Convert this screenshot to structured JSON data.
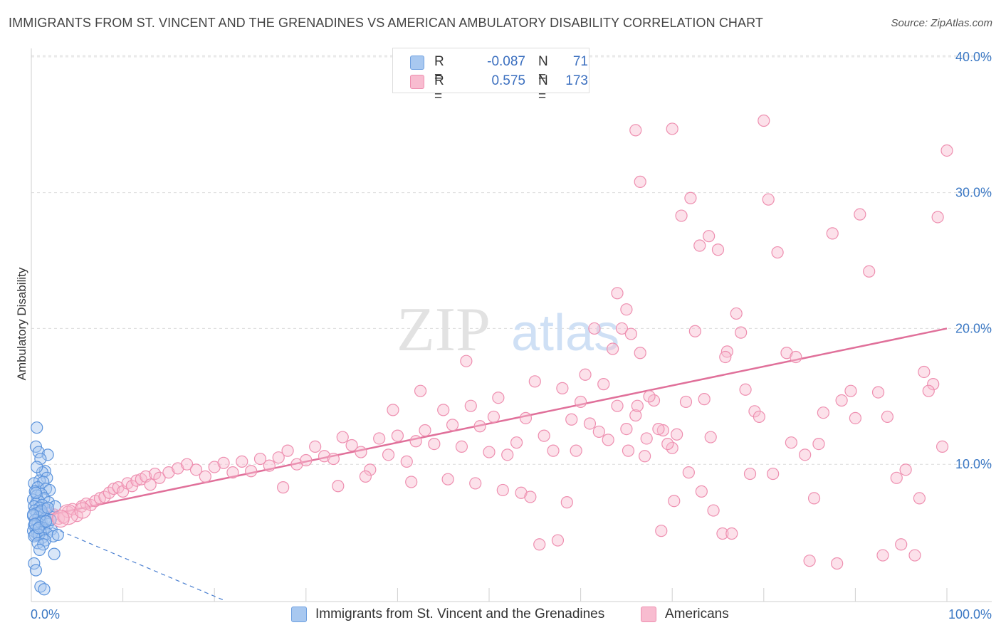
{
  "title": "IMMIGRANTS FROM ST. VINCENT AND THE GRENADINES VS AMERICAN AMBULATORY DISABILITY CORRELATION CHART",
  "source": "Source: ZipAtlas.com",
  "watermark": {
    "part1": "ZIP",
    "part2": "atlas"
  },
  "legend": {
    "rows": [
      {
        "r_label": "R =",
        "r_value": "-0.087",
        "n_label": "N =",
        "n_value": "71",
        "color": "#a8c8f0",
        "border": "#6fa0e0"
      },
      {
        "r_label": "R =",
        "r_value": "0.575",
        "n_label": "N =",
        "n_value": "173",
        "color": "#f8bcd0",
        "border": "#ee8fb0"
      }
    ]
  },
  "bottom_legend": [
    {
      "label": "Immigrants from St. Vincent and the Grenadines",
      "color": "#a8c8f0",
      "border": "#6fa0e0"
    },
    {
      "label": "Americans",
      "color": "#f8bcd0",
      "border": "#ee8fb0"
    }
  ],
  "chart_data": {
    "type": "scatter",
    "ylabel": "Ambulatory Disability",
    "xlim": [
      0,
      100
    ],
    "ylim": [
      0,
      40
    ],
    "x_tick_labels": [
      "0.0%",
      "100.0%"
    ],
    "y_ticks": [
      10,
      20,
      30,
      40
    ],
    "y_tick_labels": [
      "10.0%",
      "20.0%",
      "30.0%",
      "40.0%"
    ],
    "grid": true,
    "colors": {
      "blue_fill": "#a8c8f0",
      "blue_stroke": "#5b93dc",
      "blue_line": "#4a7fd0",
      "pink_fill": "#f8bcd0",
      "pink_stroke": "#ee8fb0",
      "pink_line": "#e0709a"
    },
    "series": [
      {
        "name": "Immigrants from St. Vincent and the Grenadines",
        "trend": {
          "x0": 0,
          "y0": 6.0,
          "x1": 21,
          "y1": 0.0,
          "style": "dashed"
        },
        "points": [
          [
            0.6,
            12.7
          ],
          [
            0.5,
            11.3
          ],
          [
            0.8,
            10.9
          ],
          [
            1.8,
            10.7
          ],
          [
            1.0,
            10.4
          ],
          [
            1.5,
            9.5
          ],
          [
            1.2,
            9.4
          ],
          [
            1.7,
            9.0
          ],
          [
            0.9,
            8.8
          ],
          [
            0.3,
            8.6
          ],
          [
            1.3,
            8.7
          ],
          [
            0.7,
            8.3
          ],
          [
            1.6,
            8.2
          ],
          [
            0.4,
            8.0
          ],
          [
            2.0,
            8.1
          ],
          [
            1.1,
            7.8
          ],
          [
            0.6,
            7.7
          ],
          [
            1.4,
            7.5
          ],
          [
            0.2,
            7.4
          ],
          [
            0.8,
            7.3
          ],
          [
            1.9,
            7.2
          ],
          [
            0.5,
            7.1
          ],
          [
            1.2,
            7.0
          ],
          [
            0.3,
            6.9
          ],
          [
            0.9,
            6.8
          ],
          [
            1.6,
            6.7
          ],
          [
            0.4,
            6.6
          ],
          [
            1.0,
            6.5
          ],
          [
            0.6,
            6.4
          ],
          [
            1.3,
            6.3
          ],
          [
            0.2,
            6.2
          ],
          [
            0.8,
            6.1
          ],
          [
            1.5,
            6.0
          ],
          [
            0.4,
            5.9
          ],
          [
            1.1,
            5.8
          ],
          [
            0.7,
            5.7
          ],
          [
            1.8,
            5.6
          ],
          [
            0.3,
            5.5
          ],
          [
            0.9,
            5.4
          ],
          [
            1.4,
            5.3
          ],
          [
            0.5,
            5.2
          ],
          [
            2.2,
            5.2
          ],
          [
            0.2,
            5.1
          ],
          [
            1.0,
            5.0
          ],
          [
            0.6,
            4.9
          ],
          [
            1.7,
            4.9
          ],
          [
            0.4,
            4.8
          ],
          [
            2.4,
            4.7
          ],
          [
            1.2,
            4.6
          ],
          [
            0.8,
            4.8
          ],
          [
            0.3,
            4.7
          ],
          [
            1.5,
            4.4
          ],
          [
            0.7,
            4.2
          ],
          [
            2.9,
            4.8
          ],
          [
            1.3,
            4.1
          ],
          [
            0.9,
            3.7
          ],
          [
            0.5,
            7.9
          ],
          [
            1.1,
            6.6
          ],
          [
            2.6,
            6.9
          ],
          [
            0.2,
            6.3
          ],
          [
            1.8,
            6.8
          ],
          [
            0.4,
            5.6
          ],
          [
            2.1,
            5.9
          ],
          [
            0.8,
            5.3
          ],
          [
            1.6,
            5.8
          ],
          [
            0.3,
            2.7
          ],
          [
            0.5,
            2.2
          ],
          [
            1.0,
            1.0
          ],
          [
            1.4,
            0.8
          ],
          [
            2.5,
            3.4
          ],
          [
            0.6,
            9.8
          ]
        ]
      },
      {
        "name": "Americans",
        "trend": {
          "x0": 0,
          "y0": 6.0,
          "x1": 100,
          "y1": 20.0,
          "style": "solid"
        },
        "points": [
          [
            1.5,
            6.6
          ],
          [
            2.0,
            6.4
          ],
          [
            2.5,
            6.3
          ],
          [
            3.0,
            6.0
          ],
          [
            3.5,
            6.1
          ],
          [
            4.0,
            6.5
          ],
          [
            4.5,
            6.7
          ],
          [
            5.0,
            6.2
          ],
          [
            5.5,
            6.9
          ],
          [
            6.0,
            7.1
          ],
          [
            6.5,
            7.0
          ],
          [
            7.0,
            7.3
          ],
          [
            7.5,
            7.5
          ],
          [
            8.0,
            7.6
          ],
          [
            8.5,
            7.9
          ],
          [
            9.0,
            8.2
          ],
          [
            9.5,
            8.3
          ],
          [
            10.0,
            8.0
          ],
          [
            10.5,
            8.6
          ],
          [
            11.0,
            8.4
          ],
          [
            11.5,
            8.8
          ],
          [
            12.0,
            8.9
          ],
          [
            12.5,
            9.1
          ],
          [
            13.0,
            8.5
          ],
          [
            13.5,
            9.3
          ],
          [
            14.0,
            9.0
          ],
          [
            15.0,
            9.4
          ],
          [
            16.0,
            9.7
          ],
          [
            17.0,
            10.0
          ],
          [
            18.0,
            9.6
          ],
          [
            19.0,
            9.1
          ],
          [
            20.0,
            9.8
          ],
          [
            21.0,
            10.1
          ],
          [
            22.0,
            9.4
          ],
          [
            23.0,
            10.2
          ],
          [
            24.0,
            9.5
          ],
          [
            25.0,
            10.4
          ],
          [
            26.0,
            9.9
          ],
          [
            27.0,
            10.5
          ],
          [
            28.0,
            11.0
          ],
          [
            29.0,
            10.0
          ],
          [
            30.0,
            10.3
          ],
          [
            31.0,
            11.3
          ],
          [
            32.0,
            10.6
          ],
          [
            33.0,
            10.4
          ],
          [
            34.0,
            12.0
          ],
          [
            35.0,
            11.4
          ],
          [
            36.0,
            10.9
          ],
          [
            37.0,
            9.6
          ],
          [
            38.0,
            11.9
          ],
          [
            39.0,
            10.7
          ],
          [
            40.0,
            12.1
          ],
          [
            41.0,
            10.2
          ],
          [
            42.0,
            11.7
          ],
          [
            43.0,
            12.5
          ],
          [
            44.0,
            11.5
          ],
          [
            45.0,
            14.0
          ],
          [
            46.0,
            12.9
          ],
          [
            47.0,
            11.3
          ],
          [
            48.0,
            14.3
          ],
          [
            49.0,
            12.8
          ],
          [
            50.0,
            10.9
          ],
          [
            51.0,
            14.9
          ],
          [
            52.0,
            10.7
          ],
          [
            53.0,
            11.6
          ],
          [
            54.0,
            13.4
          ],
          [
            55.0,
            16.1
          ],
          [
            56.0,
            12.1
          ],
          [
            57.0,
            11.0
          ],
          [
            58.0,
            15.6
          ],
          [
            59.0,
            13.3
          ],
          [
            60.0,
            14.6
          ],
          [
            61.0,
            13.0
          ],
          [
            62.0,
            12.4
          ],
          [
            63.0,
            11.8
          ],
          [
            64.0,
            14.3
          ],
          [
            65.0,
            12.6
          ],
          [
            66.0,
            13.6
          ],
          [
            67.0,
            10.6
          ],
          [
            68.0,
            14.7
          ],
          [
            69.0,
            12.5
          ],
          [
            70.0,
            11.2
          ],
          [
            27.5,
            8.3
          ],
          [
            33.5,
            8.4
          ],
          [
            36.5,
            9.1
          ],
          [
            41.5,
            8.7
          ],
          [
            45.5,
            8.9
          ],
          [
            48.5,
            8.6
          ],
          [
            51.5,
            8.1
          ],
          [
            53.5,
            7.9
          ],
          [
            39.5,
            14.0
          ],
          [
            42.5,
            15.4
          ],
          [
            47.5,
            17.6
          ],
          [
            50.5,
            13.5
          ],
          [
            54.5,
            7.6
          ],
          [
            55.5,
            4.1
          ],
          [
            57.5,
            4.4
          ],
          [
            58.5,
            7.2
          ],
          [
            59.5,
            11.0
          ],
          [
            60.5,
            16.6
          ],
          [
            61.5,
            20.0
          ],
          [
            62.5,
            15.9
          ],
          [
            63.5,
            18.5
          ],
          [
            64.5,
            20.0
          ],
          [
            65.5,
            19.6
          ],
          [
            66.5,
            18.2
          ],
          [
            67.5,
            15.0
          ],
          [
            68.5,
            12.6
          ],
          [
            69.5,
            11.5
          ],
          [
            70.5,
            12.2
          ],
          [
            71.5,
            14.6
          ],
          [
            72.5,
            19.8
          ],
          [
            73.5,
            14.8
          ],
          [
            74.5,
            6.6
          ],
          [
            75.5,
            4.9
          ],
          [
            64.0,
            22.6
          ],
          [
            65.0,
            21.4
          ],
          [
            66.0,
            34.6
          ],
          [
            66.5,
            30.8
          ],
          [
            70.0,
            34.7
          ],
          [
            71.0,
            28.3
          ],
          [
            72.0,
            29.6
          ],
          [
            73.0,
            26.1
          ],
          [
            74.0,
            26.8
          ],
          [
            75.0,
            25.8
          ],
          [
            76.0,
            18.3
          ],
          [
            77.0,
            21.1
          ],
          [
            78.0,
            15.5
          ],
          [
            79.0,
            13.9
          ],
          [
            80.0,
            35.3
          ],
          [
            80.5,
            29.5
          ],
          [
            81.5,
            25.6
          ],
          [
            82.5,
            18.2
          ],
          [
            83.5,
            17.9
          ],
          [
            84.5,
            10.7
          ],
          [
            85.5,
            7.5
          ],
          [
            86.5,
            13.8
          ],
          [
            87.5,
            27.0
          ],
          [
            88.5,
            14.7
          ],
          [
            89.5,
            15.4
          ],
          [
            90.5,
            28.4
          ],
          [
            91.5,
            24.2
          ],
          [
            92.5,
            15.3
          ],
          [
            93.5,
            13.5
          ],
          [
            94.5,
            9.0
          ],
          [
            95.5,
            9.6
          ],
          [
            96.5,
            3.3
          ],
          [
            97.5,
            16.8
          ],
          [
            98.5,
            15.9
          ],
          [
            99.0,
            28.2
          ],
          [
            99.5,
            11.3
          ],
          [
            76.5,
            4.9
          ],
          [
            78.5,
            9.3
          ],
          [
            81.0,
            9.3
          ],
          [
            85.0,
            2.9
          ],
          [
            88.0,
            2.7
          ],
          [
            93.0,
            3.3
          ],
          [
            95.0,
            4.1
          ],
          [
            97.0,
            7.5
          ],
          [
            100.0,
            33.1
          ],
          [
            98.0,
            15.4
          ],
          [
            90.0,
            13.4
          ],
          [
            86.0,
            11.5
          ],
          [
            83.0,
            11.6
          ],
          [
            79.5,
            13.5
          ],
          [
            77.5,
            19.7
          ],
          [
            75.8,
            17.9
          ],
          [
            74.2,
            12.0
          ],
          [
            73.2,
            8.0
          ],
          [
            71.8,
            9.4
          ],
          [
            70.2,
            7.3
          ],
          [
            68.8,
            5.1
          ],
          [
            67.2,
            11.9
          ],
          [
            66.2,
            14.3
          ],
          [
            65.2,
            11.0
          ]
        ]
      }
    ]
  }
}
